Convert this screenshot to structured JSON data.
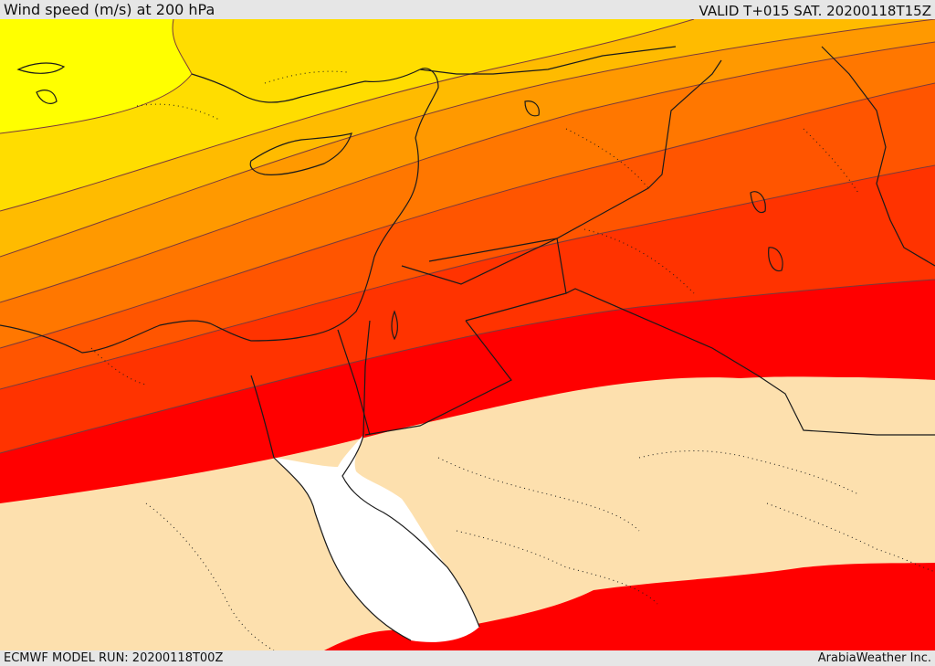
{
  "header": {
    "title": "Wind speed (m/s) at 200 hPa",
    "valid": "VALID T+015 SAT. 20200118T15Z"
  },
  "footer": {
    "model_run": "ECMWF MODEL RUN: 20200118T00Z",
    "credit": "ArabiaWeather Inc."
  },
  "map": {
    "colors": {
      "band_1": "#ffff00",
      "band_2": "#ffdd00",
      "band_3": "#ffbb00",
      "band_4": "#ff9900",
      "band_5": "#ff7700",
      "band_6": "#ff5500",
      "band_7": "#ff3300",
      "band_8": "#ff0000",
      "weak_wind": "#fde0ae",
      "sea_mask": "#ffffff",
      "border": "#1a1a1a"
    }
  }
}
